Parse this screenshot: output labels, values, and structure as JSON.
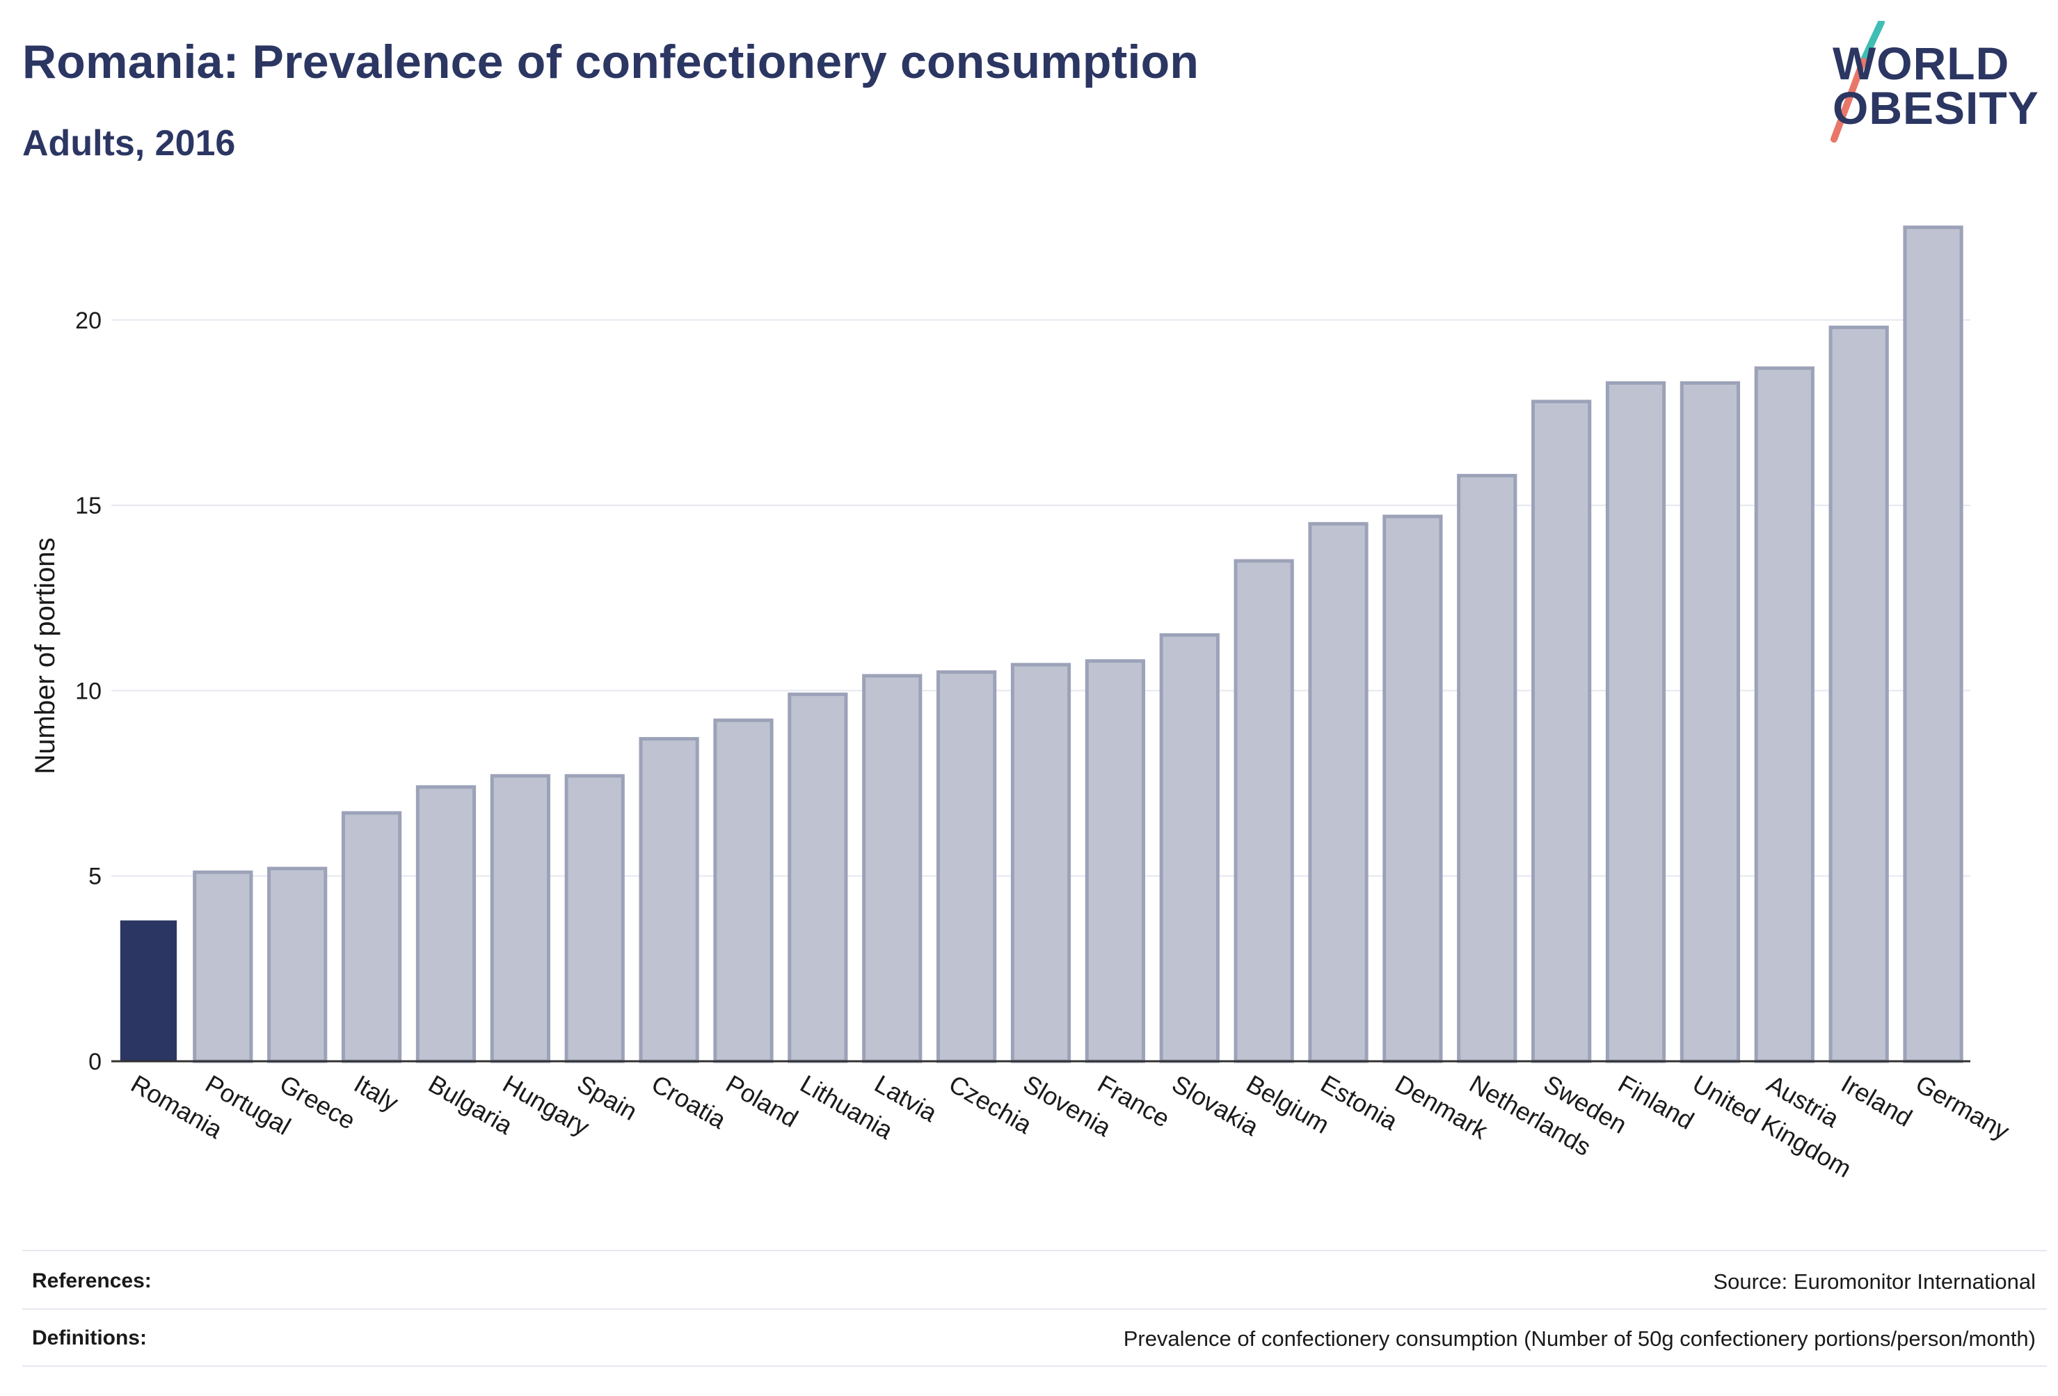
{
  "header": {
    "title": "Romania: Prevalence of confectionery consumption",
    "subtitle": "Adults, 2016"
  },
  "logo": {
    "line1": "WORLD",
    "line2": "OBESITY",
    "colors": {
      "text": "#2b3662",
      "slash_top": "#3fbfb3",
      "slash_bottom": "#e8776a"
    }
  },
  "colors": {
    "highlight": "#2b3662",
    "bar_fill": "#bfc3d1",
    "bar_stroke": "#9ca2b8",
    "grid": "#e6e8f0",
    "axis": "#333333",
    "text": "#1a1a1a"
  },
  "chart_data": {
    "type": "bar",
    "title": "Romania: Prevalence of confectionery consumption",
    "subtitle": "Adults, 2016",
    "xlabel": "",
    "ylabel": "Number of portions",
    "ylim": [
      0,
      23
    ],
    "yticks": [
      0,
      5,
      10,
      15,
      20
    ],
    "grid": true,
    "highlight": "Romania",
    "categories": [
      "Romania",
      "Portugal",
      "Greece",
      "Italy",
      "Bulgaria",
      "Hungary",
      "Spain",
      "Croatia",
      "Poland",
      "Lithuania",
      "Latvia",
      "Czechia",
      "Slovenia",
      "France",
      "Slovakia",
      "Belgium",
      "Estonia",
      "Denmark",
      "Netherlands",
      "Sweden",
      "Finland",
      "United Kingdom",
      "Austria",
      "Ireland",
      "Germany"
    ],
    "values": [
      3.8,
      5.1,
      5.2,
      6.7,
      7.4,
      7.7,
      7.7,
      8.7,
      9.2,
      9.9,
      10.4,
      10.5,
      10.7,
      10.8,
      11.5,
      13.5,
      14.5,
      14.7,
      15.8,
      17.8,
      18.3,
      18.3,
      18.7,
      19.8,
      22.5
    ]
  },
  "footer": {
    "references_label": "References:",
    "references_value": "Source: Euromonitor International",
    "definitions_label": "Definitions:",
    "definitions_value": "Prevalence of confectionery consumption (Number of 50g confectionery portions/person/month)"
  }
}
